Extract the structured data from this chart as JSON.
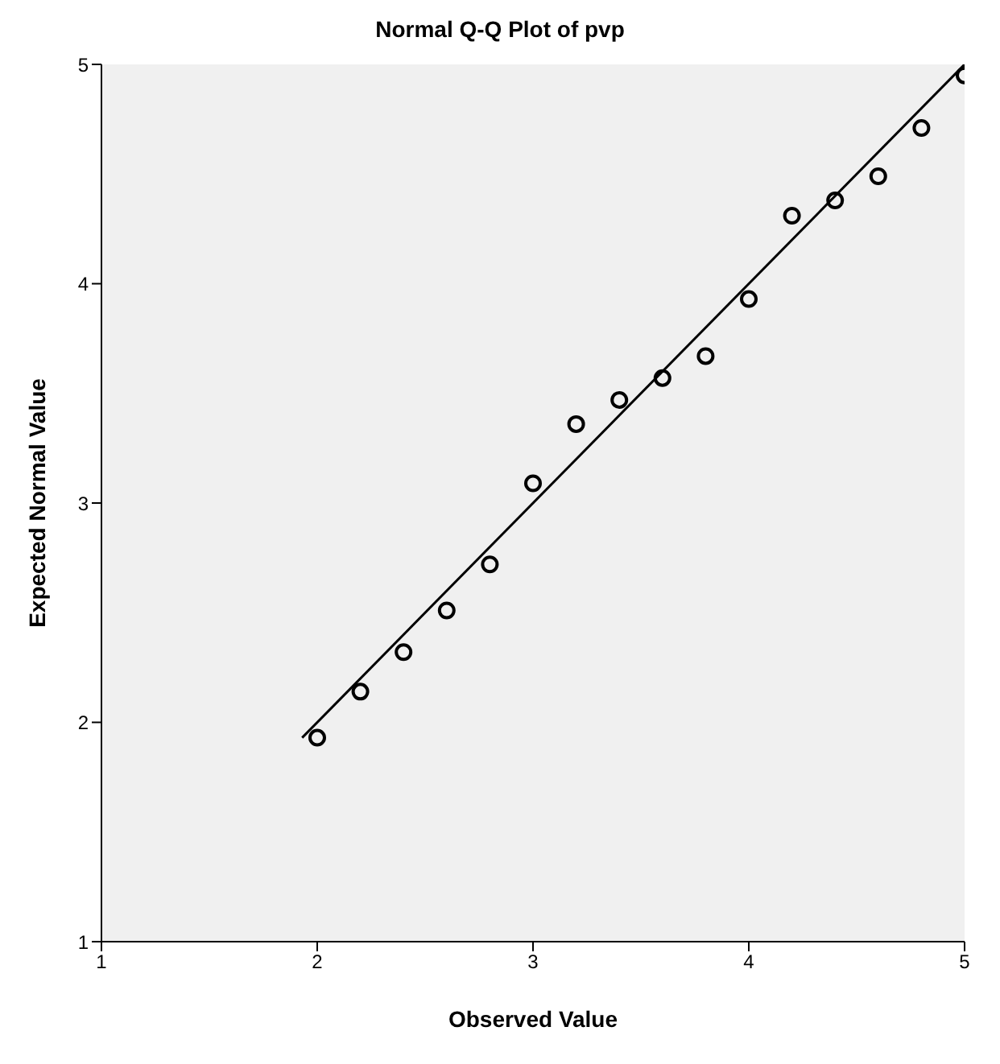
{
  "chart_data": {
    "type": "scatter",
    "title": "Normal Q-Q Plot of pvp",
    "xlabel": "Observed Value",
    "ylabel": "Expected Normal Value",
    "x": [
      2.0,
      2.2,
      2.4,
      2.6,
      2.8,
      3.0,
      3.2,
      3.4,
      3.6,
      3.8,
      4.0,
      4.2,
      4.4,
      4.6,
      4.8,
      5.0
    ],
    "series": [
      {
        "color": "#000000",
        "marker": "circle",
        "values": [
          1.93,
          2.14,
          2.32,
          2.51,
          2.72,
          3.09,
          3.36,
          3.47,
          3.57,
          3.67,
          3.93,
          4.31,
          4.38,
          4.49,
          4.71,
          4.95
        ]
      },
      {
        "type": "line",
        "color": "#000000",
        "marker": "none",
        "line_style": "solid",
        "x": [
          1.93,
          5.0
        ],
        "values": [
          1.93,
          5.0
        ]
      }
    ],
    "xlim": [
      1,
      5
    ],
    "ylim": [
      1,
      5
    ],
    "xticks": [
      1,
      2,
      3,
      4,
      5
    ],
    "yticks": [
      1,
      2,
      3,
      4,
      5
    ],
    "grid": false,
    "legend": false
  }
}
